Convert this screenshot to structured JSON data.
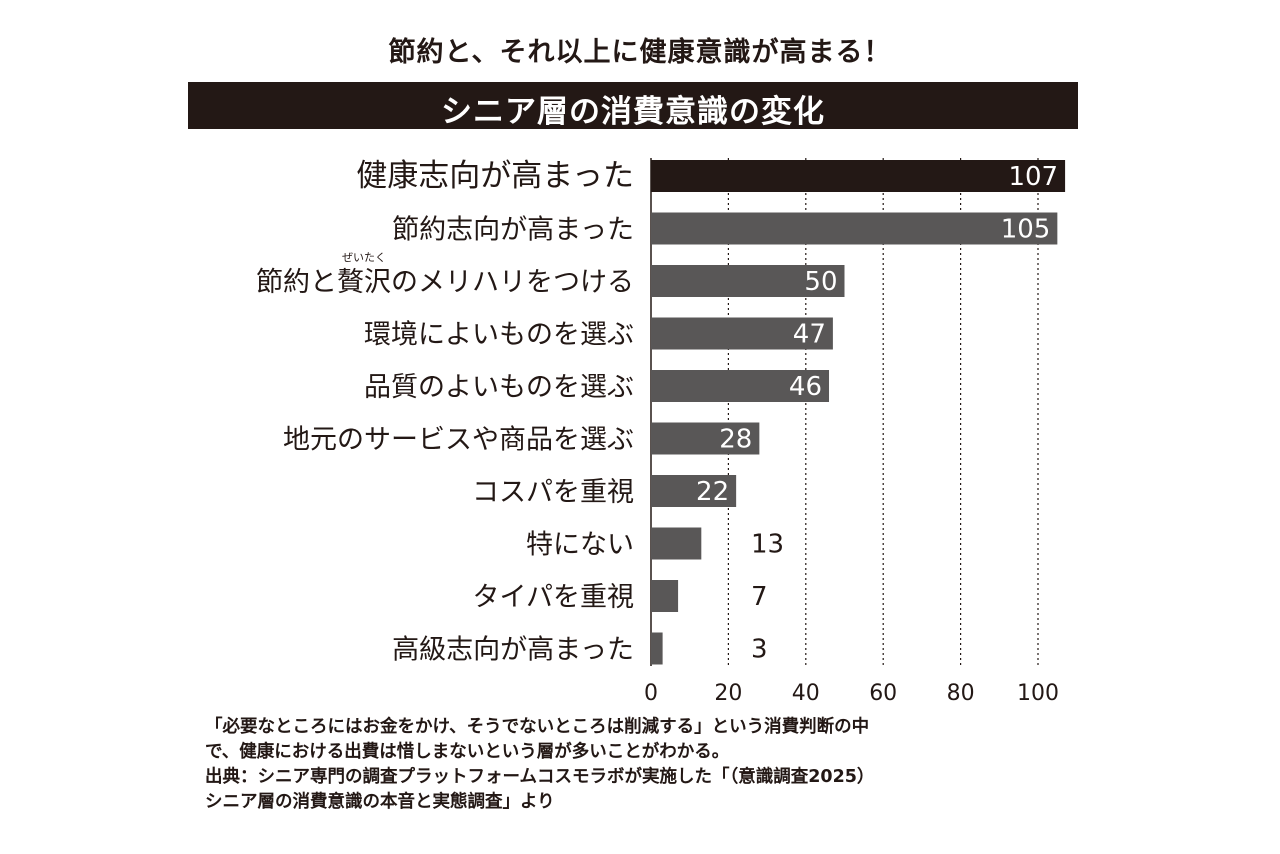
{
  "header": {
    "subtitle": "節約と、それ以上に健康意識が高まる！",
    "title": "シニア層の消費意識の変化"
  },
  "colors": {
    "top_bar": "#231815",
    "bars": "#595757",
    "grid": "#231815",
    "label_inside": "#ffffff",
    "label_outside": "#231815"
  },
  "chart_data": {
    "type": "bar",
    "orientation": "horizontal",
    "categories": [
      "健康志向が高まった",
      "節約志向が高まった",
      "節約と贅沢のメリハリをつける",
      "環境によいものを選ぶ",
      "品質のよいものを選ぶ",
      "地元のサービスや商品を選ぶ",
      "コスパを重視",
      "特にない",
      "タイパを重視",
      "高級志向が高まった"
    ],
    "values": [
      107,
      105,
      50,
      47,
      46,
      28,
      22,
      13,
      7,
      3
    ],
    "highlight_index": 0,
    "ruby": {
      "text": "ぜいたく",
      "target": "贅沢",
      "category_index": 2
    },
    "xticks": [
      0,
      20,
      40,
      60,
      80,
      100
    ],
    "xlim": [
      0,
      107
    ],
    "grid": "vertical dotted",
    "title": "シニア層の消費意識の変化",
    "xlabel": "",
    "ylabel": ""
  },
  "notes": [
    "「必要なところにはお金をかけ、そうでないところは削減する」という消費判断の中",
    "で、健康における出費は惜しまないという層が多いことがわかる。",
    "出典：シニア専門の調査プラットフォームコスモラボが実施した「（意識調査2025）",
    "シニア層の消費意識の本音と実態調査」より"
  ]
}
